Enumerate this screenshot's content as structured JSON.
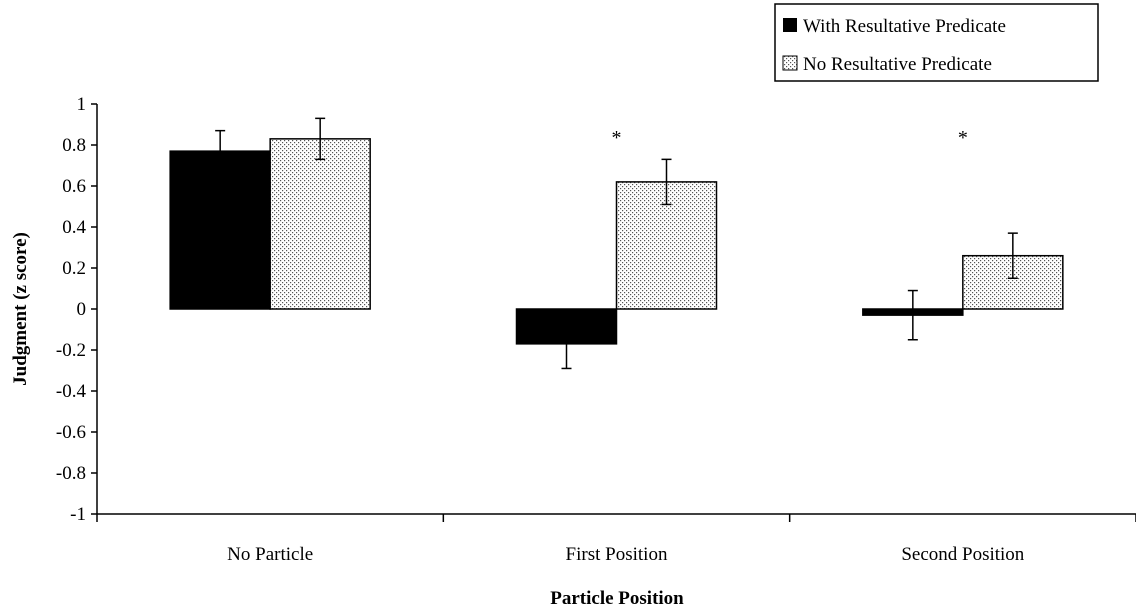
{
  "chart_data": {
    "type": "bar",
    "title": "",
    "xlabel": "Particle Position",
    "ylabel": "Judgment (z score)",
    "ylim": [
      -1,
      1
    ],
    "yticks": [
      "1",
      "0.8",
      "0.6",
      "0.4",
      "0.2",
      "0",
      "-0.2",
      "-0.4",
      "-0.6",
      "-0.8",
      "-1"
    ],
    "categories": [
      "No Particle",
      "First Position",
      "Second Position"
    ],
    "series": [
      {
        "name": "With Resultative Predicate",
        "color": "#000000",
        "pattern": "solid",
        "values": [
          0.77,
          -0.17,
          -0.03
        ],
        "error": [
          0.1,
          0.12,
          0.12
        ]
      },
      {
        "name": "No Resultative Predicate",
        "color": "#ffffff",
        "pattern": "dotted",
        "values": [
          0.83,
          0.62,
          0.26
        ],
        "error": [
          0.1,
          0.11,
          0.11
        ]
      }
    ],
    "annotations": [
      "",
      "*",
      "*"
    ],
    "legend_position": "top-right",
    "grid": false
  }
}
